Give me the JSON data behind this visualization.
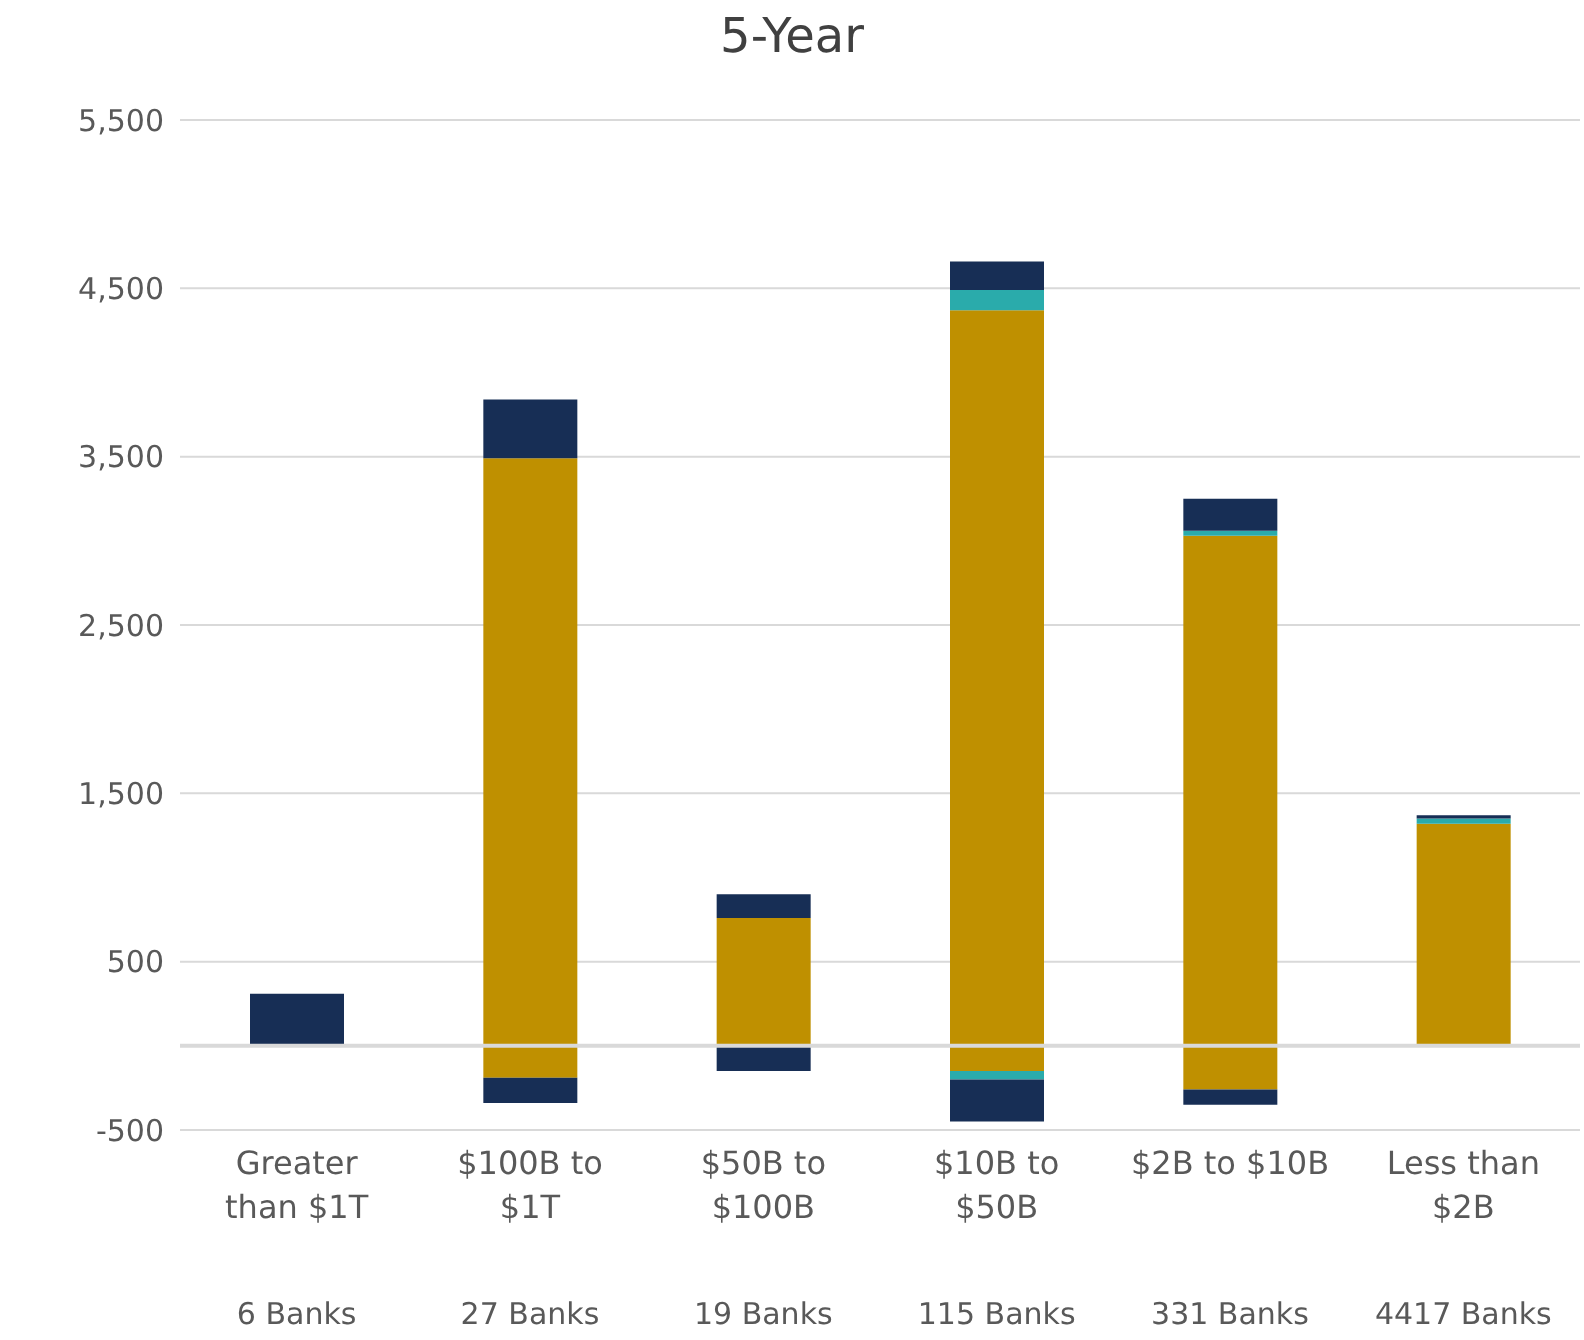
{
  "chart_data": {
    "type": "bar",
    "title": "5-Year",
    "stacked": true,
    "categories": [
      "Greater than $1T",
      "$100B to $1T",
      "$50B to $100B",
      "$10B to $50B",
      "$2B to $10B",
      "Less than $2B"
    ],
    "series": [
      {
        "color": "#bf9000",
        "values": [
          null,
          3490,
          760,
          4370,
          3030,
          1320
        ]
      },
      {
        "color": "#2aabab",
        "values": [
          null,
          null,
          null,
          120,
          30,
          30
        ]
      },
      {
        "color": "#172e55",
        "values": [
          310,
          350,
          140,
          170,
          190,
          20
        ]
      },
      {
        "color": "#bf9000",
        "values": [
          null,
          -190,
          null,
          -150,
          -260,
          null
        ]
      },
      {
        "color": "#2aabab",
        "values": [
          null,
          null,
          null,
          -50,
          null,
          null
        ]
      },
      {
        "color": "#172e55",
        "values": [
          null,
          -150,
          -150,
          -250,
          -90,
          null
        ]
      }
    ],
    "ylim": [
      -500,
      5500
    ],
    "yticks": [
      -500,
      500,
      {
        "value": 1500,
        "label": "1,500"
      },
      {
        "value": 2500,
        "label": "2,500"
      },
      {
        "value": 3500,
        "label": "3,500"
      },
      {
        "value": 4500,
        "label": "4,500"
      },
      {
        "value": 5500,
        "label": "5,500"
      }
    ],
    "grid": "y",
    "ref_lines": [
      {
        "axis": "y",
        "value": 0,
        "color": "#d9d9d9"
      }
    ],
    "annotations": [
      "6 Banks",
      "27 Banks",
      "19 Banks",
      "115 Banks",
      "331 Banks",
      "4417 Banks"
    ]
  }
}
